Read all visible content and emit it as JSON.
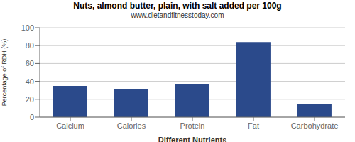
{
  "chart_data": {
    "type": "bar",
    "title": "Nuts, almond butter, plain, with salt added per 100g",
    "subtitle": "www.dietandfitnesstoday.com",
    "categories": [
      "Calcium",
      "Calories",
      "Protein",
      "Fat",
      "Carbohydrate"
    ],
    "values": [
      35,
      31,
      37,
      84,
      15
    ],
    "color": "#2b4a8b",
    "xlabel": "Different Nutrients",
    "ylabel": "Percentage of RDH (%)",
    "ylim": [
      0,
      100
    ],
    "yticks": [
      0,
      20,
      40,
      60,
      80,
      100
    ],
    "grid": true
  }
}
